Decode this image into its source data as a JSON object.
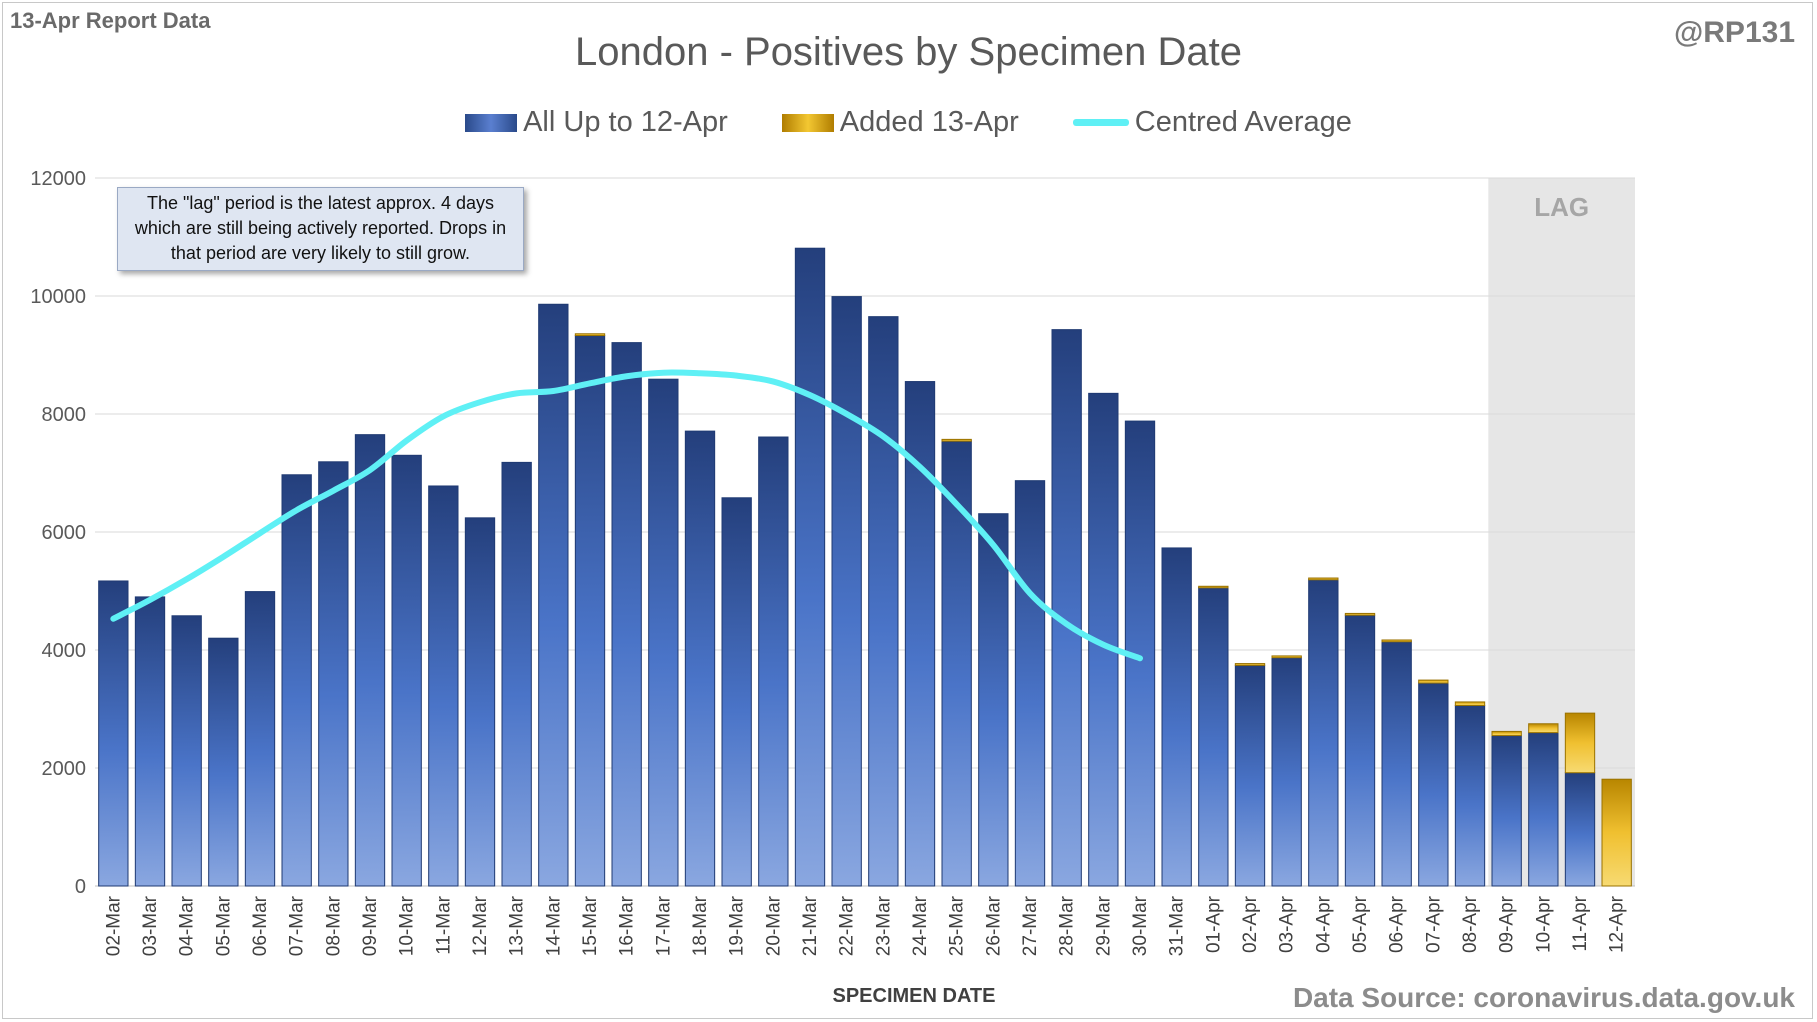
{
  "header": {
    "report_label": "13-Apr Report Data",
    "handle": "@RP131"
  },
  "note": "The \"lag\" period is the latest approx. 4 days which are still being actively reported.  Drops in that period are very likely to still grow.",
  "footer": {
    "source": "Data Source: coronavirus.data.gov.uk"
  },
  "colors": {
    "existing": "#3f63b8",
    "added": "#f0c030",
    "average": "#5ff0f5",
    "lag_shade": "#e6e6e6"
  },
  "chart_data": {
    "type": "bar",
    "stacked": true,
    "title": "London - Positives by Specimen Date",
    "xlabel": "SPECIMEN DATE",
    "ylabel": "",
    "ylim": [
      0,
      12000
    ],
    "yticks": [
      0,
      2000,
      4000,
      6000,
      8000,
      10000,
      12000
    ],
    "grid": true,
    "legend": "top-center",
    "lag_region": {
      "from": "09-Apr",
      "to": "12-Apr",
      "label": "LAG"
    },
    "categories": [
      "02-Mar",
      "03-Mar",
      "04-Mar",
      "05-Mar",
      "06-Mar",
      "07-Mar",
      "08-Mar",
      "09-Mar",
      "10-Mar",
      "11-Mar",
      "12-Mar",
      "13-Mar",
      "14-Mar",
      "15-Mar",
      "16-Mar",
      "17-Mar",
      "18-Mar",
      "19-Mar",
      "20-Mar",
      "21-Mar",
      "22-Mar",
      "23-Mar",
      "24-Mar",
      "25-Mar",
      "26-Mar",
      "27-Mar",
      "28-Mar",
      "29-Mar",
      "30-Mar",
      "31-Mar",
      "01-Apr",
      "02-Apr",
      "03-Apr",
      "04-Apr",
      "05-Apr",
      "06-Apr",
      "07-Apr",
      "08-Apr",
      "09-Apr",
      "10-Apr",
      "11-Apr",
      "12-Apr"
    ],
    "series": [
      {
        "name": "All Up to 12-Apr",
        "kind": "bar",
        "values": [
          5170,
          4900,
          4580,
          4200,
          4990,
          6970,
          7190,
          7650,
          7300,
          6780,
          6240,
          7180,
          9860,
          9330,
          9210,
          8590,
          7710,
          6580,
          7610,
          10810,
          9990,
          9650,
          8550,
          7540,
          6310,
          6870,
          9430,
          8350,
          7880,
          5730,
          5060,
          3740,
          3870,
          5190,
          4590,
          4140,
          3440,
          3060,
          2550,
          2600,
          1920,
          0
        ]
      },
      {
        "name": "Added 13-Apr",
        "kind": "bar",
        "values": [
          0,
          0,
          0,
          0,
          0,
          0,
          0,
          0,
          0,
          0,
          0,
          0,
          0,
          30,
          0,
          0,
          0,
          0,
          0,
          0,
          0,
          0,
          0,
          30,
          0,
          0,
          0,
          0,
          0,
          0,
          20,
          30,
          30,
          30,
          30,
          30,
          50,
          60,
          70,
          150,
          1010,
          1810
        ]
      },
      {
        "name": "Centred Average",
        "kind": "line",
        "values": [
          4530,
          4850,
          5200,
          5580,
          5980,
          6370,
          6700,
          7050,
          7550,
          7960,
          8200,
          8350,
          8390,
          8520,
          8640,
          8700,
          8690,
          8650,
          8550,
          8320,
          8000,
          7620,
          7100,
          6470,
          5780,
          4960,
          4440,
          4090,
          3860,
          null,
          null,
          null,
          null,
          null,
          null,
          null,
          null,
          null,
          null,
          null,
          null,
          null
        ],
        "x_start": "02-Mar"
      }
    ]
  }
}
